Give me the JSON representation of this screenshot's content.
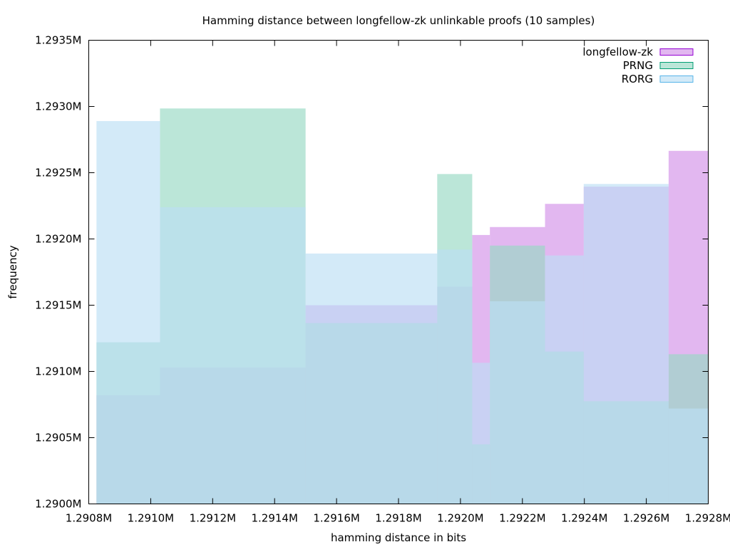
{
  "chart_data": {
    "type": "area",
    "title": "Hamming distance between longfellow-zk unlinkable proofs (10 samples)",
    "xlabel": "hamming distance in bits",
    "ylabel": "frequency",
    "xlim": [
      1290800,
      1292800
    ],
    "ylim": [
      1290000,
      1293500
    ],
    "xticks": [
      1290800,
      1291000,
      1291200,
      1291400,
      1291600,
      1291800,
      1292000,
      1292200,
      1292400,
      1292600,
      1292800
    ],
    "xtick_labels": [
      "1.2908M",
      "1.2910M",
      "1.2912M",
      "1.2914M",
      "1.2916M",
      "1.2918M",
      "1.2920M",
      "1.2922M",
      "1.2924M",
      "1.2926M",
      "1.2928M"
    ],
    "yticks": [
      1290000,
      1290500,
      1291000,
      1291500,
      1292000,
      1292500,
      1293000,
      1293500
    ],
    "ytick_labels": [
      "1.2900M",
      "1.2905M",
      "1.2910M",
      "1.2915M",
      "1.2920M",
      "1.2925M",
      "1.2930M",
      "1.2935M"
    ],
    "legend_position": "top-right",
    "grid": false,
    "series": [
      {
        "name": "longfellow-zk",
        "fill": "#d291e8",
        "stroke": "#9400d3",
        "bins": [
          {
            "x0": 1290825,
            "x1": 1291030,
            "y": 1290820
          },
          {
            "x0": 1291030,
            "x1": 1291500,
            "y": 1291030
          },
          {
            "x0": 1291500,
            "x1": 1291925,
            "y": 1291500
          },
          {
            "x0": 1291925,
            "x1": 1292038,
            "y": 1291640
          },
          {
            "x0": 1292038,
            "x1": 1292095,
            "y": 1292030
          },
          {
            "x0": 1292095,
            "x1": 1292273,
            "y": 1292090
          },
          {
            "x0": 1292273,
            "x1": 1292398,
            "y": 1292265
          },
          {
            "x0": 1292398,
            "x1": 1292672,
            "y": 1292395
          },
          {
            "x0": 1292672,
            "x1": 1292800,
            "y": 1292665
          }
        ]
      },
      {
        "name": "PRNG",
        "fill": "#97d9c3",
        "stroke": "#009e73",
        "bins": [
          {
            "x0": 1290825,
            "x1": 1291030,
            "y": 1291220
          },
          {
            "x0": 1291030,
            "x1": 1291500,
            "y": 1292985
          },
          {
            "x0": 1291500,
            "x1": 1291925,
            "y": 1291365
          },
          {
            "x0": 1291925,
            "x1": 1292038,
            "y": 1292490
          },
          {
            "x0": 1292038,
            "x1": 1292095,
            "y": 1290450
          },
          {
            "x0": 1292095,
            "x1": 1292273,
            "y": 1291950
          },
          {
            "x0": 1292273,
            "x1": 1292398,
            "y": 1291150
          },
          {
            "x0": 1292398,
            "x1": 1292672,
            "y": 1290775
          },
          {
            "x0": 1292672,
            "x1": 1292800,
            "y": 1291130
          }
        ]
      },
      {
        "name": "RORG",
        "fill": "#bbdef4",
        "stroke": "#56b4e9",
        "bins": [
          {
            "x0": 1290825,
            "x1": 1291030,
            "y": 1292890
          },
          {
            "x0": 1291030,
            "x1": 1291500,
            "y": 1292240
          },
          {
            "x0": 1291500,
            "x1": 1291925,
            "y": 1291890
          },
          {
            "x0": 1291925,
            "x1": 1292038,
            "y": 1291920
          },
          {
            "x0": 1292038,
            "x1": 1292095,
            "y": 1291065
          },
          {
            "x0": 1292095,
            "x1": 1292273,
            "y": 1291530
          },
          {
            "x0": 1292273,
            "x1": 1292398,
            "y": 1291875
          },
          {
            "x0": 1292398,
            "x1": 1292672,
            "y": 1292415
          },
          {
            "x0": 1292672,
            "x1": 1292800,
            "y": 1290720
          }
        ]
      }
    ]
  }
}
